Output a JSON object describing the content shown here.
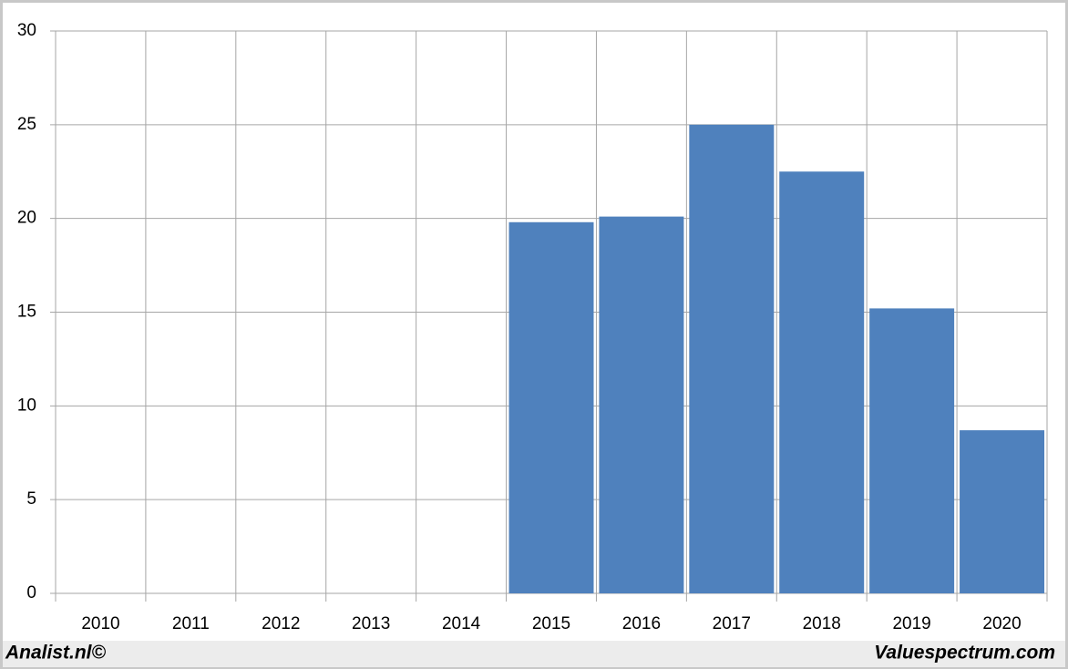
{
  "chart_data": {
    "type": "bar",
    "categories": [
      "2010",
      "2011",
      "2012",
      "2013",
      "2014",
      "2015",
      "2016",
      "2017",
      "2018",
      "2019",
      "2020"
    ],
    "values": [
      null,
      null,
      null,
      null,
      null,
      19.8,
      20.1,
      25,
      22.5,
      15.2,
      8.7
    ],
    "color": "#4f81bd",
    "ylim": [
      0,
      30
    ],
    "yticks": [
      0,
      5,
      10,
      15,
      20,
      25,
      30
    ],
    "grid": true,
    "source_left": "Analist.nl©",
    "source_right": "Valuespectrum.com"
  }
}
